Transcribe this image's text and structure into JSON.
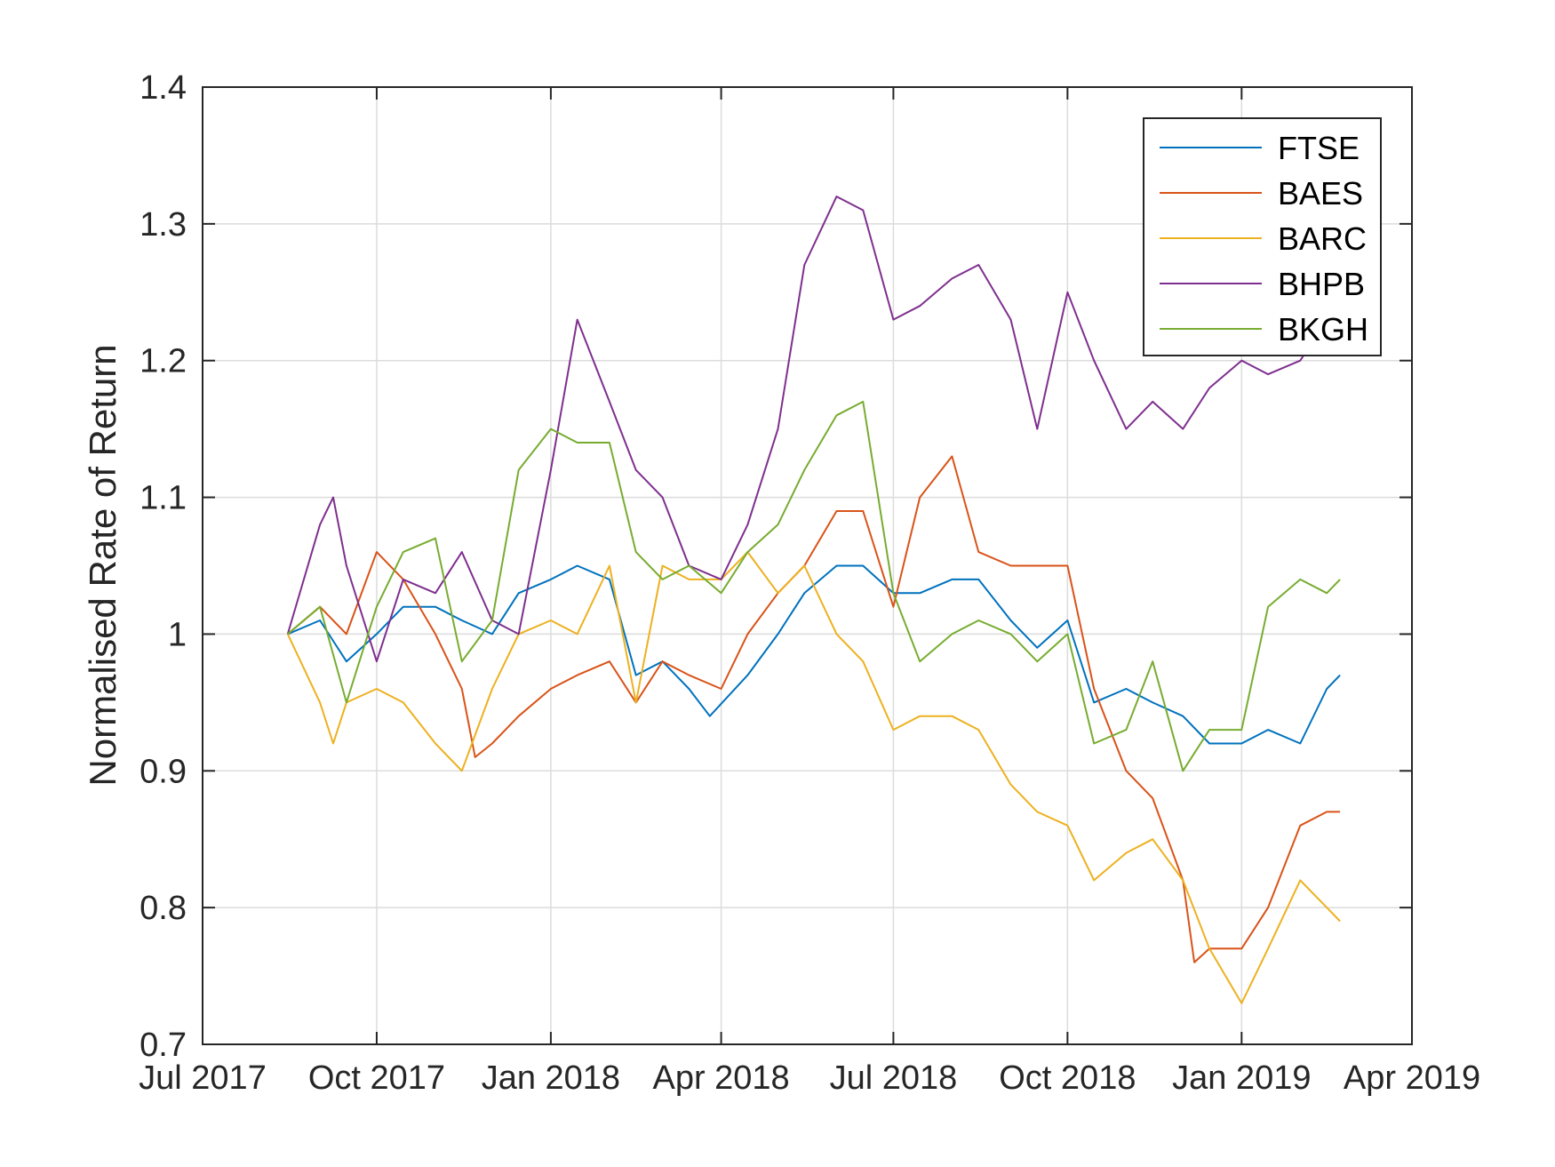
{
  "chart_data": {
    "type": "line",
    "title": "",
    "xlabel": "",
    "ylabel": "Normalised Rate of Return",
    "ylim": [
      0.7,
      1.4
    ],
    "yticks": [
      "0.7",
      "0.8",
      "0.9",
      "1",
      "1.1",
      "1.2",
      "1.3",
      "1.4"
    ],
    "xlim": [
      "2017-07-01",
      "2019-04-01"
    ],
    "xticks": [
      {
        "date": "2017-07-01",
        "label": "Jul 2017"
      },
      {
        "date": "2017-10-01",
        "label": "Oct 2017"
      },
      {
        "date": "2018-01-01",
        "label": "Jan 2018"
      },
      {
        "date": "2018-04-01",
        "label": "Apr 2018"
      },
      {
        "date": "2018-07-01",
        "label": "Jul 2018"
      },
      {
        "date": "2018-10-01",
        "label": "Oct 2018"
      },
      {
        "date": "2019-01-01",
        "label": "Jan 2019"
      },
      {
        "date": "2019-04-01",
        "label": "Apr 2019"
      }
    ],
    "grid": true,
    "legend_position": "top-right",
    "series": [
      {
        "name": "FTSE",
        "color": "#0072BD",
        "points": [
          [
            "2017-08-15",
            1.0
          ],
          [
            "2017-09-01",
            1.01
          ],
          [
            "2017-09-15",
            0.98
          ],
          [
            "2017-10-01",
            1.0
          ],
          [
            "2017-10-15",
            1.02
          ],
          [
            "2017-11-01",
            1.02
          ],
          [
            "2017-11-15",
            1.01
          ],
          [
            "2017-12-01",
            1.0
          ],
          [
            "2017-12-15",
            1.03
          ],
          [
            "2018-01-01",
            1.04
          ],
          [
            "2018-01-15",
            1.05
          ],
          [
            "2018-02-01",
            1.04
          ],
          [
            "2018-02-15",
            0.97
          ],
          [
            "2018-03-01",
            0.98
          ],
          [
            "2018-03-15",
            0.96
          ],
          [
            "2018-03-26",
            0.94
          ],
          [
            "2018-04-15",
            0.97
          ],
          [
            "2018-05-01",
            1.0
          ],
          [
            "2018-05-15",
            1.03
          ],
          [
            "2018-06-01",
            1.05
          ],
          [
            "2018-06-15",
            1.05
          ],
          [
            "2018-07-01",
            1.03
          ],
          [
            "2018-07-15",
            1.03
          ],
          [
            "2018-08-01",
            1.04
          ],
          [
            "2018-08-15",
            1.04
          ],
          [
            "2018-09-01",
            1.01
          ],
          [
            "2018-09-15",
            0.99
          ],
          [
            "2018-10-01",
            1.01
          ],
          [
            "2018-10-15",
            0.95
          ],
          [
            "2018-11-01",
            0.96
          ],
          [
            "2018-11-15",
            0.95
          ],
          [
            "2018-12-01",
            0.94
          ],
          [
            "2018-12-15",
            0.92
          ],
          [
            "2019-01-01",
            0.92
          ],
          [
            "2019-01-15",
            0.93
          ],
          [
            "2019-02-01",
            0.92
          ],
          [
            "2019-02-15",
            0.96
          ],
          [
            "2019-02-22",
            0.97
          ]
        ]
      },
      {
        "name": "BAES",
        "color": "#D95319",
        "points": [
          [
            "2017-08-15",
            1.0
          ],
          [
            "2017-09-01",
            1.02
          ],
          [
            "2017-09-15",
            1.0
          ],
          [
            "2017-10-01",
            1.06
          ],
          [
            "2017-10-15",
            1.04
          ],
          [
            "2017-11-01",
            1.0
          ],
          [
            "2017-11-15",
            0.96
          ],
          [
            "2017-11-22",
            0.91
          ],
          [
            "2017-12-01",
            0.92
          ],
          [
            "2017-12-15",
            0.94
          ],
          [
            "2018-01-01",
            0.96
          ],
          [
            "2018-01-15",
            0.97
          ],
          [
            "2018-02-01",
            0.98
          ],
          [
            "2018-02-15",
            0.95
          ],
          [
            "2018-03-01",
            0.98
          ],
          [
            "2018-03-15",
            0.97
          ],
          [
            "2018-04-01",
            0.96
          ],
          [
            "2018-04-15",
            1.0
          ],
          [
            "2018-05-01",
            1.03
          ],
          [
            "2018-05-15",
            1.05
          ],
          [
            "2018-06-01",
            1.09
          ],
          [
            "2018-06-15",
            1.09
          ],
          [
            "2018-07-01",
            1.02
          ],
          [
            "2018-07-15",
            1.1
          ],
          [
            "2018-08-01",
            1.13
          ],
          [
            "2018-08-15",
            1.06
          ],
          [
            "2018-09-01",
            1.05
          ],
          [
            "2018-09-15",
            1.05
          ],
          [
            "2018-10-01",
            1.05
          ],
          [
            "2018-10-15",
            0.96
          ],
          [
            "2018-11-01",
            0.9
          ],
          [
            "2018-11-15",
            0.88
          ],
          [
            "2018-12-01",
            0.82
          ],
          [
            "2018-12-07",
            0.76
          ],
          [
            "2018-12-15",
            0.77
          ],
          [
            "2019-01-01",
            0.77
          ],
          [
            "2019-01-15",
            0.8
          ],
          [
            "2019-02-01",
            0.86
          ],
          [
            "2019-02-15",
            0.87
          ],
          [
            "2019-02-22",
            0.87
          ]
        ]
      },
      {
        "name": "BARC",
        "color": "#EDB120",
        "points": [
          [
            "2017-08-15",
            1.0
          ],
          [
            "2017-09-01",
            0.95
          ],
          [
            "2017-09-08",
            0.92
          ],
          [
            "2017-09-15",
            0.95
          ],
          [
            "2017-10-01",
            0.96
          ],
          [
            "2017-10-15",
            0.95
          ],
          [
            "2017-11-01",
            0.92
          ],
          [
            "2017-11-15",
            0.9
          ],
          [
            "2017-12-01",
            0.96
          ],
          [
            "2017-12-15",
            1.0
          ],
          [
            "2018-01-01",
            1.01
          ],
          [
            "2018-01-15",
            1.0
          ],
          [
            "2018-02-01",
            1.05
          ],
          [
            "2018-02-15",
            0.95
          ],
          [
            "2018-03-01",
            1.05
          ],
          [
            "2018-03-15",
            1.04
          ],
          [
            "2018-04-01",
            1.04
          ],
          [
            "2018-04-15",
            1.06
          ],
          [
            "2018-05-01",
            1.03
          ],
          [
            "2018-05-15",
            1.05
          ],
          [
            "2018-06-01",
            1.0
          ],
          [
            "2018-06-15",
            0.98
          ],
          [
            "2018-07-01",
            0.93
          ],
          [
            "2018-07-15",
            0.94
          ],
          [
            "2018-08-01",
            0.94
          ],
          [
            "2018-08-15",
            0.93
          ],
          [
            "2018-09-01",
            0.89
          ],
          [
            "2018-09-15",
            0.87
          ],
          [
            "2018-10-01",
            0.86
          ],
          [
            "2018-10-15",
            0.82
          ],
          [
            "2018-11-01",
            0.84
          ],
          [
            "2018-11-15",
            0.85
          ],
          [
            "2018-12-01",
            0.82
          ],
          [
            "2018-12-15",
            0.77
          ],
          [
            "2019-01-01",
            0.73
          ],
          [
            "2019-01-15",
            0.77
          ],
          [
            "2019-02-01",
            0.82
          ],
          [
            "2019-02-15",
            0.8
          ],
          [
            "2019-02-22",
            0.79
          ]
        ]
      },
      {
        "name": "BHPB",
        "color": "#7E2F8E",
        "points": [
          [
            "2017-08-15",
            1.0
          ],
          [
            "2017-09-01",
            1.08
          ],
          [
            "2017-09-08",
            1.1
          ],
          [
            "2017-09-15",
            1.05
          ],
          [
            "2017-10-01",
            0.98
          ],
          [
            "2017-10-15",
            1.04
          ],
          [
            "2017-11-01",
            1.03
          ],
          [
            "2017-11-15",
            1.06
          ],
          [
            "2017-12-01",
            1.01
          ],
          [
            "2017-12-15",
            1.0
          ],
          [
            "2018-01-01",
            1.12
          ],
          [
            "2018-01-15",
            1.23
          ],
          [
            "2018-02-01",
            1.17
          ],
          [
            "2018-02-15",
            1.12
          ],
          [
            "2018-03-01",
            1.1
          ],
          [
            "2018-03-15",
            1.05
          ],
          [
            "2018-04-01",
            1.04
          ],
          [
            "2018-04-15",
            1.08
          ],
          [
            "2018-05-01",
            1.15
          ],
          [
            "2018-05-15",
            1.27
          ],
          [
            "2018-06-01",
            1.32
          ],
          [
            "2018-06-15",
            1.31
          ],
          [
            "2018-07-01",
            1.23
          ],
          [
            "2018-07-15",
            1.24
          ],
          [
            "2018-08-01",
            1.26
          ],
          [
            "2018-08-15",
            1.27
          ],
          [
            "2018-09-01",
            1.23
          ],
          [
            "2018-09-15",
            1.15
          ],
          [
            "2018-10-01",
            1.25
          ],
          [
            "2018-10-15",
            1.2
          ],
          [
            "2018-11-01",
            1.15
          ],
          [
            "2018-11-15",
            1.17
          ],
          [
            "2018-12-01",
            1.15
          ],
          [
            "2018-12-15",
            1.18
          ],
          [
            "2019-01-01",
            1.2
          ],
          [
            "2019-01-15",
            1.19
          ],
          [
            "2019-02-01",
            1.2
          ],
          [
            "2019-02-15",
            1.23
          ],
          [
            "2019-02-22",
            1.22
          ]
        ]
      },
      {
        "name": "BKGH",
        "color": "#77AC30",
        "points": [
          [
            "2017-08-15",
            1.0
          ],
          [
            "2017-09-01",
            1.02
          ],
          [
            "2017-09-15",
            0.95
          ],
          [
            "2017-10-01",
            1.02
          ],
          [
            "2017-10-15",
            1.06
          ],
          [
            "2017-11-01",
            1.07
          ],
          [
            "2017-11-15",
            0.98
          ],
          [
            "2017-12-01",
            1.01
          ],
          [
            "2017-12-15",
            1.12
          ],
          [
            "2018-01-01",
            1.15
          ],
          [
            "2018-01-15",
            1.14
          ],
          [
            "2018-02-01",
            1.14
          ],
          [
            "2018-02-15",
            1.06
          ],
          [
            "2018-03-01",
            1.04
          ],
          [
            "2018-03-15",
            1.05
          ],
          [
            "2018-04-01",
            1.03
          ],
          [
            "2018-04-15",
            1.06
          ],
          [
            "2018-05-01",
            1.08
          ],
          [
            "2018-05-15",
            1.12
          ],
          [
            "2018-06-01",
            1.16
          ],
          [
            "2018-06-15",
            1.17
          ],
          [
            "2018-07-01",
            1.03
          ],
          [
            "2018-07-15",
            0.98
          ],
          [
            "2018-08-01",
            1.0
          ],
          [
            "2018-08-15",
            1.01
          ],
          [
            "2018-09-01",
            1.0
          ],
          [
            "2018-09-15",
            0.98
          ],
          [
            "2018-10-01",
            1.0
          ],
          [
            "2018-10-15",
            0.92
          ],
          [
            "2018-11-01",
            0.93
          ],
          [
            "2018-11-15",
            0.98
          ],
          [
            "2018-12-01",
            0.9
          ],
          [
            "2018-12-15",
            0.93
          ],
          [
            "2019-01-01",
            0.93
          ],
          [
            "2019-01-15",
            1.02
          ],
          [
            "2019-02-01",
            1.04
          ],
          [
            "2019-02-15",
            1.03
          ],
          [
            "2019-02-22",
            1.04
          ]
        ]
      }
    ]
  }
}
